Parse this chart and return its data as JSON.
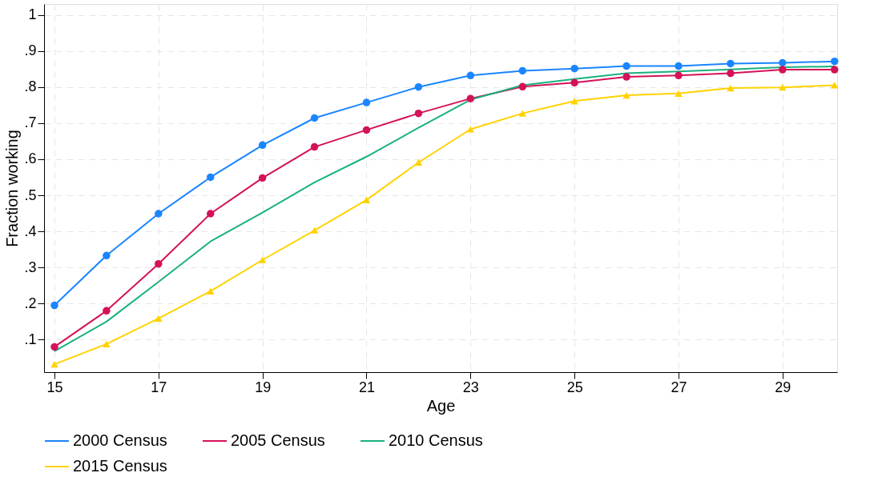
{
  "chart_data": {
    "type": "line",
    "xlabel": "Age",
    "ylabel": "Fraction working",
    "x": [
      15,
      16,
      17,
      18,
      19,
      20,
      21,
      22,
      23,
      24,
      25,
      26,
      27,
      28,
      29,
      30
    ],
    "series": [
      {
        "name": "2000 Census",
        "color": "#1a85ff",
        "marker": "circle",
        "values": [
          0.195,
          0.333,
          0.449,
          0.55,
          0.639,
          0.714,
          0.757,
          0.8,
          0.832,
          0.845,
          0.851,
          0.858,
          0.858,
          0.865,
          0.867,
          0.871
        ]
      },
      {
        "name": "2005 Census",
        "color": "#d41159",
        "marker": "circle",
        "values": [
          0.08,
          0.18,
          0.31,
          0.449,
          0.548,
          0.634,
          0.681,
          0.727,
          0.768,
          0.801,
          0.812,
          0.828,
          0.832,
          0.838,
          0.848,
          0.848
        ]
      },
      {
        "name": "2010 Census",
        "color": "#1ab17f",
        "marker": "none",
        "values": [
          0.068,
          0.15,
          0.26,
          0.372,
          0.452,
          0.536,
          0.607,
          0.687,
          0.765,
          0.805,
          0.822,
          0.838,
          0.843,
          0.849,
          0.855,
          0.857
        ]
      },
      {
        "name": "2015 Census",
        "color": "#ffd200",
        "marker": "triangle",
        "values": [
          0.032,
          0.088,
          0.159,
          0.234,
          0.321,
          0.403,
          0.487,
          0.591,
          0.683,
          0.727,
          0.761,
          0.777,
          0.782,
          0.797,
          0.799,
          0.805
        ]
      }
    ],
    "xlim": [
      14.8,
      30.05
    ],
    "xticks": [
      15,
      17,
      19,
      21,
      23,
      25,
      27,
      29
    ],
    "ylim": [
      0.01,
      1.03
    ],
    "yticks": [
      {
        "value": 0.1,
        "label": ".1"
      },
      {
        "value": 0.2,
        "label": ".2"
      },
      {
        "value": 0.3,
        "label": ".3"
      },
      {
        "value": 0.4,
        "label": ".4"
      },
      {
        "value": 0.5,
        "label": ".5"
      },
      {
        "value": 0.6,
        "label": ".6"
      },
      {
        "value": 0.7,
        "label": ".7"
      },
      {
        "value": 0.8,
        "label": ".8"
      },
      {
        "value": 0.9,
        "label": ".9"
      },
      1
    ],
    "grid": true,
    "legend": "bottom",
    "line_style": "solid"
  }
}
